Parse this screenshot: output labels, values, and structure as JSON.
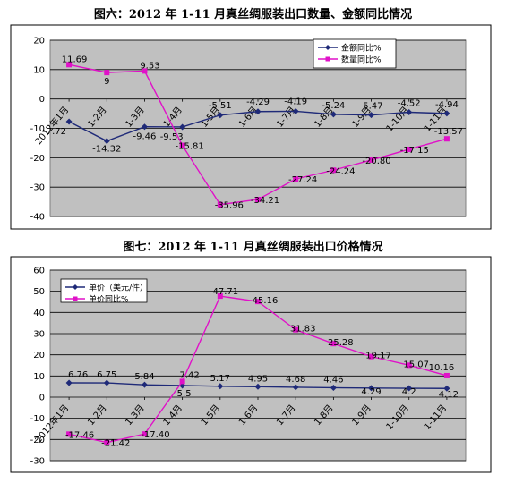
{
  "chart_data": [
    {
      "type": "line",
      "title": "图六：2012 年 1-11 月真丝绸服装出口数量、金额同比情况",
      "categories": [
        "2012年1月",
        "1-2月",
        "1-3月",
        "1-4月",
        "1-5月",
        "1-6月",
        "1-7月",
        "1-8月",
        "1-9月",
        "1-10月",
        "1-11月"
      ],
      "series": [
        {
          "name": "金额同比%",
          "color": "#1f2a78",
          "marker": "diamond",
          "values": [
            -7.72,
            -14.32,
            -9.46,
            -9.53,
            -5.51,
            -4.29,
            -4.19,
            -5.24,
            -5.47,
            -4.52,
            -4.94
          ],
          "labels": [
            "-7.72",
            "-14.32",
            "-9.46",
            "-9.53",
            "-5.51",
            "-4.29",
            "-4.19",
            "-5.24",
            "-5.47",
            "-4.52",
            "-4.94"
          ]
        },
        {
          "name": "数量同比%",
          "color": "#e011c8",
          "marker": "square",
          "values": [
            11.69,
            9,
            9.53,
            -15.81,
            -35.96,
            -34.21,
            -27.24,
            -24.24,
            -20.8,
            -17.15,
            -13.57
          ],
          "labels": [
            "11.69",
            "9",
            "9.53",
            "-15.81",
            "-35.96",
            "-34.21",
            "-27.24",
            "-24.24",
            "-20.80",
            "-17.15",
            "-13.57"
          ]
        }
      ],
      "ylim": [
        -40,
        20
      ],
      "yticks": [
        "20",
        "10",
        "0",
        "-10",
        "-20",
        "-30",
        "-40"
      ],
      "grid": true,
      "legend": "top-right"
    },
    {
      "type": "line",
      "title": "图七：2012 年 1-11 月真丝绸服装出口价格情况",
      "categories": [
        "2012年1月",
        "1-2月",
        "1-3月",
        "1-4月",
        "1-5月",
        "1-6月",
        "1-7月",
        "1-8月",
        "1-9月",
        "1-10月",
        "1-11月"
      ],
      "series": [
        {
          "name": "单价（美元/件）",
          "color": "#1f2a78",
          "marker": "diamond",
          "values": [
            6.76,
            6.75,
            5.84,
            5.5,
            5.17,
            4.95,
            4.68,
            4.46,
            4.29,
            4.2,
            4.12
          ],
          "labels": [
            "6.76",
            "6.75",
            "5.84",
            "5.5",
            "5.17",
            "4.95",
            "4.68",
            "4.46",
            "4.29",
            "4.2",
            "4.12"
          ]
        },
        {
          "name": "单价同比%",
          "color": "#e011c8",
          "marker": "square",
          "values": [
            -17.46,
            -21.42,
            -17.4,
            7.42,
            47.71,
            45.16,
            31.83,
            25.28,
            19.17,
            15.07,
            10.16
          ],
          "labels": [
            "-17.46",
            "-21.42",
            "-17.40",
            "7.42",
            "47.71",
            "45.16",
            "31.83",
            "25.28",
            "19.17",
            "15.07",
            "10.16"
          ]
        }
      ],
      "ylim": [
        -30,
        60
      ],
      "yticks": [
        "60",
        "50",
        "40",
        "30",
        "20",
        "10",
        "0",
        "-10",
        "-20",
        "-30"
      ],
      "grid": true,
      "legend": "top-left"
    }
  ]
}
